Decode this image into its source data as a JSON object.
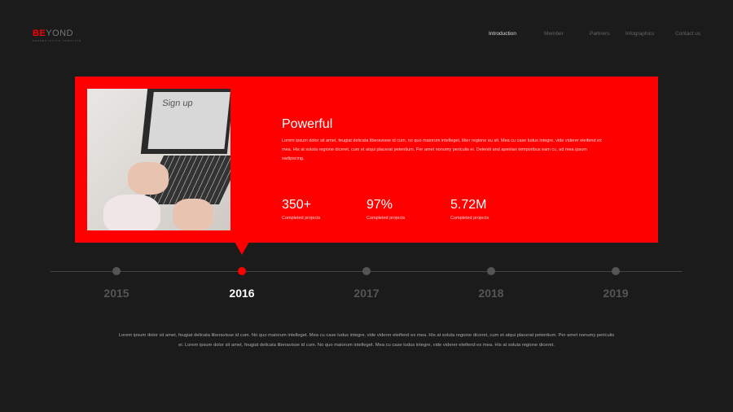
{
  "logo": {
    "highlight": "BE",
    "rest": "YOND",
    "tagline": "PRESENTATION TEMPLATE"
  },
  "nav": [
    {
      "label": "Introduction",
      "active": true
    },
    {
      "label": "Member"
    },
    {
      "label": "Partners"
    },
    {
      "label": "Infographics"
    },
    {
      "label": "Contact us"
    }
  ],
  "card": {
    "image_text": "Sign up",
    "title": "Powerful",
    "description": "Lorem ipsum dolor sit amet, feugiat delicata liberavisse id cum, no quo maiorum intelleget, liber regione eu sit. Mea cu case ludus integre, vide viderer eleifend ex mea. His at soluta regione diceret, cum et atqui placerat petentium. Per amet nonumy periculis ei. Deleniti and apeirian temporibus eam cu, ad mea ipsum sadipscing.",
    "stats": [
      {
        "value": "350+",
        "label": "Completed projects"
      },
      {
        "value": "97%",
        "label": "Completed projects"
      },
      {
        "value": "5.72M",
        "label": "Completed projects"
      }
    ],
    "color": "#ff0000"
  },
  "timeline": [
    {
      "year": "2015"
    },
    {
      "year": "2016",
      "active": true
    },
    {
      "year": "2017"
    },
    {
      "year": "2018"
    },
    {
      "year": "2019"
    }
  ],
  "bottom_text": "Lorem ipsum dolor sit amet, feugiat delicata liberavisse id cum. No quo maiorum intelleget. Mea cu case ludus integre, vide viderer eleifend ex mea. His at soluta regione diceret, cum et atqui placerat petentium. Per amet nonumy periculis ei. Lorem ipsum dolor sit amet, feugiat delicata liberavisse id cum. No quo maiorum intelleget. Mea cu case ludus integre, vide viderer eleifend ex mea. His at soluta regione diceret."
}
